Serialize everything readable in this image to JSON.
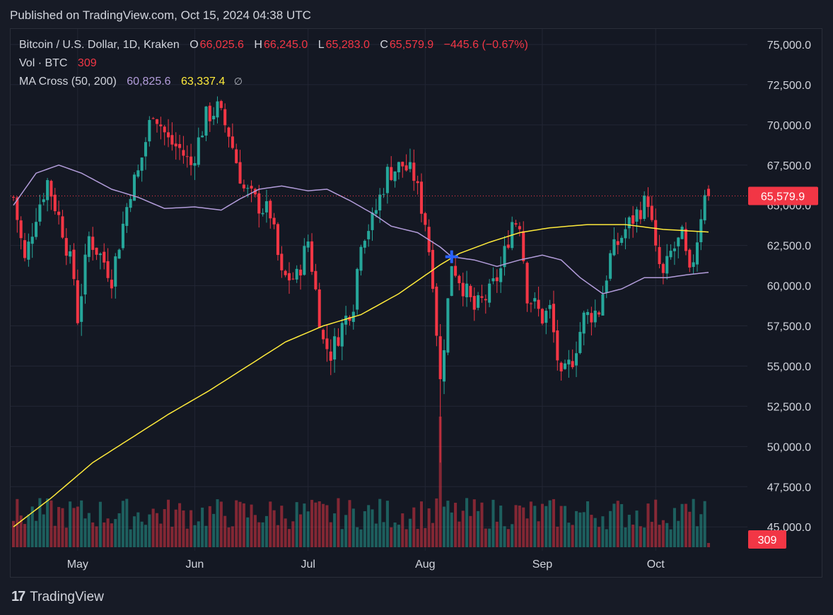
{
  "header": {
    "published": "Published on TradingView.com, Oct 15, 2024 04:38 UTC"
  },
  "legend": {
    "symbol": "Bitcoin / U.S. Dollar, 1D, Kraken",
    "o_label": "O",
    "o_value": "66,025.6",
    "h_label": "H",
    "h_value": "66,245.0",
    "l_label": "L",
    "l_value": "65,283.0",
    "c_label": "C",
    "c_value": "65,579.9",
    "change": "−445.6 (−0.67%)",
    "vol_label": "Vol · BTC",
    "vol_value": "309",
    "ma_label": "MA Cross (50, 200)",
    "ma50_value": "60,825.6",
    "ma200_value": "63,337.4",
    "hide_icon": "∅"
  },
  "footer": {
    "brand": "TradingView",
    "logo_glyph": "17"
  },
  "colors": {
    "up": "#26a69a",
    "down": "#f23645",
    "ma50": "#b39ddb",
    "ma200": "#ffeb3b",
    "cross": "#2962ff"
  },
  "chart_data": {
    "type": "candlestick",
    "price_axis": {
      "min": 44000,
      "max": 75000,
      "ticks": [
        45000,
        47500,
        50000,
        52500,
        55000,
        57500,
        60000,
        62500,
        65000,
        67500,
        70000,
        72500,
        75000
      ],
      "tick_labels": [
        "45,000.0",
        "47,500.0",
        "50,000.0",
        "52,500.0",
        "55,000.0",
        "57,500.0",
        "60,000.0",
        "62,500.0",
        "65,000.0",
        "67,500.0",
        "70,000.0",
        "72,500.0",
        "75,000.0"
      ]
    },
    "price_label": {
      "value": 65579.9,
      "text": "65,579.9"
    },
    "volume_label": {
      "text": "309"
    },
    "x_axis": {
      "start": "2024-04-14",
      "end": "2024-10-15",
      "months": [
        {
          "label": "May",
          "date": "2024-05-01"
        },
        {
          "label": "Jun",
          "date": "2024-06-01"
        },
        {
          "label": "Jul",
          "date": "2024-07-01"
        },
        {
          "label": "Aug",
          "date": "2024-08-01"
        },
        {
          "label": "Sep",
          "date": "2024-09-01"
        },
        {
          "label": "Oct",
          "date": "2024-10-01"
        }
      ]
    },
    "price_keypoints": [
      [
        "2024-04-14",
        65500
      ],
      [
        "2024-04-17",
        61500
      ],
      [
        "2024-04-20",
        64500
      ],
      [
        "2024-04-23",
        66500
      ],
      [
        "2024-04-27",
        63500
      ],
      [
        "2024-04-30",
        60500
      ],
      [
        "2024-05-01",
        58000
      ],
      [
        "2024-05-04",
        63000
      ],
      [
        "2024-05-08",
        61500
      ],
      [
        "2024-05-10",
        60500
      ],
      [
        "2024-05-15",
        66000
      ],
      [
        "2024-05-17",
        67000
      ],
      [
        "2024-05-21",
        71000
      ],
      [
        "2024-05-25",
        69000
      ],
      [
        "2024-05-28",
        68500
      ],
      [
        "2024-05-31",
        67500
      ],
      [
        "2024-06-04",
        70500
      ],
      [
        "2024-06-07",
        71000
      ],
      [
        "2024-06-10",
        69500
      ],
      [
        "2024-06-14",
        66000
      ],
      [
        "2024-06-18",
        65000
      ],
      [
        "2024-06-21",
        64500
      ],
      [
        "2024-06-24",
        60500
      ],
      [
        "2024-06-28",
        60500
      ],
      [
        "2024-07-01",
        62800
      ],
      [
        "2024-07-05",
        56500
      ],
      [
        "2024-07-07",
        55800
      ],
      [
        "2024-07-10",
        57500
      ],
      [
        "2024-07-13",
        59000
      ],
      [
        "2024-07-15",
        63000
      ],
      [
        "2024-07-18",
        64000
      ],
      [
        "2024-07-22",
        67000
      ],
      [
        "2024-07-26",
        67500
      ],
      [
        "2024-07-29",
        66800
      ],
      [
        "2024-08-01",
        64000
      ],
      [
        "2024-08-03",
        60500
      ],
      [
        "2024-08-05",
        54000
      ],
      [
        "2024-08-08",
        61500
      ],
      [
        "2024-08-10",
        60500
      ],
      [
        "2024-08-14",
        58500
      ],
      [
        "2024-08-18",
        59500
      ],
      [
        "2024-08-21",
        61000
      ],
      [
        "2024-08-24",
        64000
      ],
      [
        "2024-08-26",
        64000
      ],
      [
        "2024-08-28",
        59500
      ],
      [
        "2024-09-01",
        58000
      ],
      [
        "2024-09-03",
        58500
      ],
      [
        "2024-09-06",
        54000
      ],
      [
        "2024-09-09",
        55500
      ],
      [
        "2024-09-12",
        58000
      ],
      [
        "2024-09-16",
        58500
      ],
      [
        "2024-09-19",
        61800
      ],
      [
        "2024-09-23",
        63500
      ],
      [
        "2024-09-26",
        64500
      ],
      [
        "2024-09-29",
        65400
      ],
      [
        "2024-10-01",
        62000
      ],
      [
        "2024-10-03",
        60500
      ],
      [
        "2024-10-05",
        62000
      ],
      [
        "2024-10-08",
        63000
      ],
      [
        "2024-10-10",
        60500
      ],
      [
        "2024-10-12",
        63000
      ],
      [
        "2024-10-14",
        66000
      ],
      [
        "2024-10-15",
        65580
      ]
    ],
    "ma50_keypoints": [
      [
        "2024-04-14",
        65000
      ],
      [
        "2024-04-20",
        67000
      ],
      [
        "2024-04-26",
        67500
      ],
      [
        "2024-05-02",
        67000
      ],
      [
        "2024-05-10",
        66000
      ],
      [
        "2024-05-17",
        65500
      ],
      [
        "2024-05-24",
        64800
      ],
      [
        "2024-06-01",
        64900
      ],
      [
        "2024-06-08",
        64700
      ],
      [
        "2024-06-13",
        65400
      ],
      [
        "2024-06-18",
        66000
      ],
      [
        "2024-06-24",
        66200
      ],
      [
        "2024-07-01",
        65900
      ],
      [
        "2024-07-06",
        66000
      ],
      [
        "2024-07-12",
        65300
      ],
      [
        "2024-07-18",
        64500
      ],
      [
        "2024-07-23",
        63700
      ],
      [
        "2024-07-30",
        63300
      ],
      [
        "2024-08-05",
        62400
      ],
      [
        "2024-08-08",
        61800
      ],
      [
        "2024-08-14",
        61600
      ],
      [
        "2024-08-20",
        61200
      ],
      [
        "2024-08-26",
        61600
      ],
      [
        "2024-09-01",
        61900
      ],
      [
        "2024-09-06",
        61600
      ],
      [
        "2024-09-11",
        60500
      ],
      [
        "2024-09-17",
        59500
      ],
      [
        "2024-09-22",
        59800
      ],
      [
        "2024-09-28",
        60500
      ],
      [
        "2024-10-04",
        60500
      ],
      [
        "2024-10-10",
        60700
      ],
      [
        "2024-10-15",
        60826
      ]
    ],
    "ma200_keypoints": [
      [
        "2024-04-14",
        45000
      ],
      [
        "2024-04-24",
        46800
      ],
      [
        "2024-05-05",
        49000
      ],
      [
        "2024-05-15",
        50500
      ],
      [
        "2024-05-25",
        52000
      ],
      [
        "2024-06-05",
        53500
      ],
      [
        "2024-06-15",
        55000
      ],
      [
        "2024-06-25",
        56500
      ],
      [
        "2024-07-05",
        57500
      ],
      [
        "2024-07-15",
        58200
      ],
      [
        "2024-07-25",
        59500
      ],
      [
        "2024-08-05",
        61300
      ],
      [
        "2024-08-10",
        62000
      ],
      [
        "2024-08-18",
        62700
      ],
      [
        "2024-08-26",
        63300
      ],
      [
        "2024-09-03",
        63600
      ],
      [
        "2024-09-13",
        63800
      ],
      [
        "2024-09-23",
        63800
      ],
      [
        "2024-10-03",
        63500
      ],
      [
        "2024-10-15",
        63337
      ]
    ],
    "cross_marker": {
      "date": "2024-08-08",
      "price": 61800
    },
    "last_candle": {
      "date": "2024-10-15",
      "open": 66025.6,
      "high": 66245.0,
      "low": 65283.0,
      "close": 65579.9
    }
  }
}
